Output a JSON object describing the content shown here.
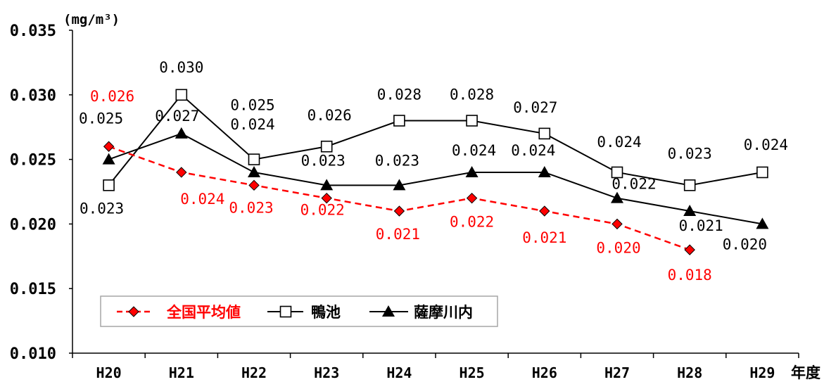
{
  "chart_data": {
    "type": "line",
    "title": "",
    "ylabel": "(mg/m³)",
    "xlabel": "年度",
    "ylim": [
      0.01,
      0.035
    ],
    "yticks": [
      0.01,
      0.015,
      0.02,
      0.025,
      0.03,
      0.035
    ],
    "ytick_labels": [
      "0.010",
      "0.015",
      "0.020",
      "0.025",
      "0.030",
      "0.035"
    ],
    "categories": [
      "H20",
      "H21",
      "H22",
      "H23",
      "H24",
      "H25",
      "H26",
      "H27",
      "H28",
      "H29"
    ],
    "grid": false,
    "legend_position": "bottom-left",
    "series": [
      {
        "name": "全国平均値",
        "color": "#ff0000",
        "marker": "diamond",
        "dashed": true,
        "values": [
          0.026,
          0.024,
          0.023,
          0.022,
          0.021,
          0.022,
          0.021,
          0.02,
          0.018,
          null
        ],
        "labels": [
          "0.026",
          "0.024",
          "0.023",
          "0.022",
          "0.021",
          "0.022",
          "0.021",
          "0.020",
          "0.018",
          ""
        ]
      },
      {
        "name": "鴨池",
        "color": "#000000",
        "marker": "square",
        "dashed": false,
        "values": [
          0.023,
          0.03,
          0.025,
          0.026,
          0.028,
          0.028,
          0.027,
          0.024,
          0.023,
          0.024
        ],
        "labels": [
          "0.023",
          "0.030",
          "0.025",
          "0.026",
          "0.028",
          "0.028",
          "0.027",
          "0.024",
          "0.023",
          "0.024"
        ]
      },
      {
        "name": "薩摩川内",
        "color": "#000000",
        "marker": "triangle",
        "dashed": false,
        "values": [
          0.025,
          0.027,
          0.024,
          0.023,
          0.023,
          0.024,
          0.024,
          0.022,
          0.021,
          0.02
        ],
        "labels": [
          "0.025",
          "0.027",
          "0.024",
          "0.023",
          "0.023",
          "0.024",
          "0.024",
          "0.022",
          "0.021",
          "0.020"
        ]
      }
    ]
  }
}
